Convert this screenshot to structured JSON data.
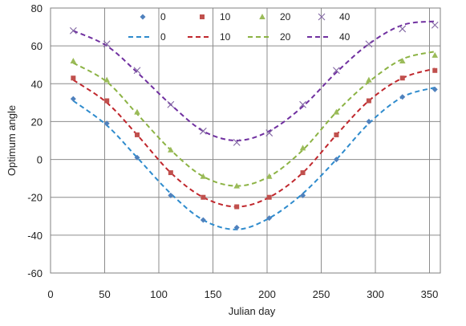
{
  "chart_data": {
    "type": "scatter",
    "title": "",
    "xlabel": "Julian day",
    "ylabel": "Optimum angle",
    "xlim": [
      0,
      360
    ],
    "ylim": [
      -60,
      80
    ],
    "xticks": [
      0,
      50,
      100,
      150,
      200,
      250,
      300,
      350
    ],
    "yticks": [
      -60,
      -40,
      -20,
      0,
      20,
      40,
      60,
      80
    ],
    "grid": "vertical-and-horizontal",
    "legend_position": "top",
    "x": [
      21,
      52,
      80,
      111,
      141,
      172,
      202,
      233,
      264,
      294,
      325,
      355
    ],
    "series": [
      {
        "name": "0",
        "kind": "markers",
        "marker": "diamond",
        "color": "#4f81bd",
        "values": [
          32,
          19,
          1,
          -19,
          -32,
          -36,
          -31,
          -19,
          0,
          20,
          33,
          37
        ]
      },
      {
        "name": "10",
        "kind": "markers",
        "marker": "square",
        "color": "#c0504d",
        "values": [
          43,
          31,
          13,
          -7,
          -20,
          -25,
          -20,
          -7,
          13,
          31,
          43,
          47
        ]
      },
      {
        "name": "20",
        "kind": "markers",
        "marker": "triangle",
        "color": "#9bbb59",
        "values": [
          52,
          42,
          25,
          5,
          -9,
          -14,
          -9,
          6,
          25,
          42,
          52,
          55
        ]
      },
      {
        "name": "40",
        "kind": "markers",
        "marker": "x",
        "color": "#8064a2",
        "values": [
          68,
          61,
          47,
          29,
          15,
          9,
          14,
          29,
          47,
          61,
          69,
          71
        ]
      },
      {
        "name": "0",
        "kind": "dashed-line",
        "color": "#2e8bcd",
        "x": [
          21,
          52,
          80,
          111,
          141,
          172,
          202,
          233,
          264,
          294,
          325,
          355
        ],
        "values": [
          31,
          18,
          1,
          -18,
          -32,
          -37,
          -31,
          -18,
          0,
          19,
          33,
          38
        ]
      },
      {
        "name": "10",
        "kind": "dashed-line",
        "color": "#c0272d",
        "x": [
          21,
          52,
          80,
          111,
          141,
          172,
          202,
          233,
          264,
          294,
          325,
          355
        ],
        "values": [
          42,
          30,
          13,
          -7,
          -20,
          -25,
          -20,
          -7,
          13,
          31,
          43,
          48
        ]
      },
      {
        "name": "20",
        "kind": "dashed-line",
        "color": "#8cb344",
        "x": [
          21,
          52,
          80,
          111,
          141,
          172,
          202,
          233,
          264,
          294,
          325,
          355
        ],
        "values": [
          51,
          41,
          24,
          5,
          -9,
          -14,
          -9,
          5,
          25,
          41,
          53,
          57
        ]
      },
      {
        "name": "40",
        "kind": "dashed-line",
        "color": "#7030a0",
        "x": [
          21,
          52,
          80,
          111,
          141,
          172,
          202,
          233,
          264,
          294,
          325,
          355
        ],
        "values": [
          68,
          60,
          46,
          29,
          15,
          10,
          15,
          28,
          46,
          61,
          71,
          73
        ]
      }
    ]
  }
}
